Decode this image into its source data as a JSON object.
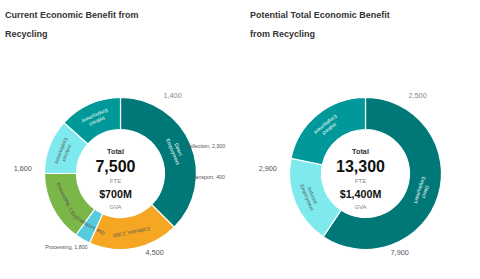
{
  "chart_data": [
    {
      "type": "donut",
      "title": "Current Economic Benefit from\nRecycling",
      "categories": [
        "Direct\nEmployment",
        "Collection, 2,300",
        "Transport, 400",
        "Processing, 1,800",
        "Induced\nEmployment",
        "Indirect\nEmployment"
      ],
      "values": [
        4500,
        2300,
        400,
        1800,
        1400,
        1600
      ],
      "colors": [
        "#007878",
        "#F5A623",
        "#55CCDD",
        "#7AB648",
        "#7EEAEE",
        "#009898"
      ],
      "annotations": [
        "Total",
        "7,500",
        "FTE",
        "$700M",
        "GVA",
        "1,400",
        "1,600",
        "4,500",
        "Collection, 2,300",
        "Transport, 400",
        "Processing, 1,800"
      ]
    },
    {
      "type": "donut",
      "title": "Potential Total Economic Benefit\nfrom Recycling",
      "categories": [
        "Direct\nEmployment",
        "Induced\nEmployment",
        "Indirect\nEmployment"
      ],
      "values": [
        7900,
        2500,
        2900
      ],
      "colors": [
        "#007878",
        "#7EEAEE",
        "#009898"
      ],
      "annotations": [
        "Total",
        "13,300",
        "FTE",
        "$1,400M",
        "GVA",
        "2,500",
        "2,900",
        "7,900"
      ]
    }
  ]
}
